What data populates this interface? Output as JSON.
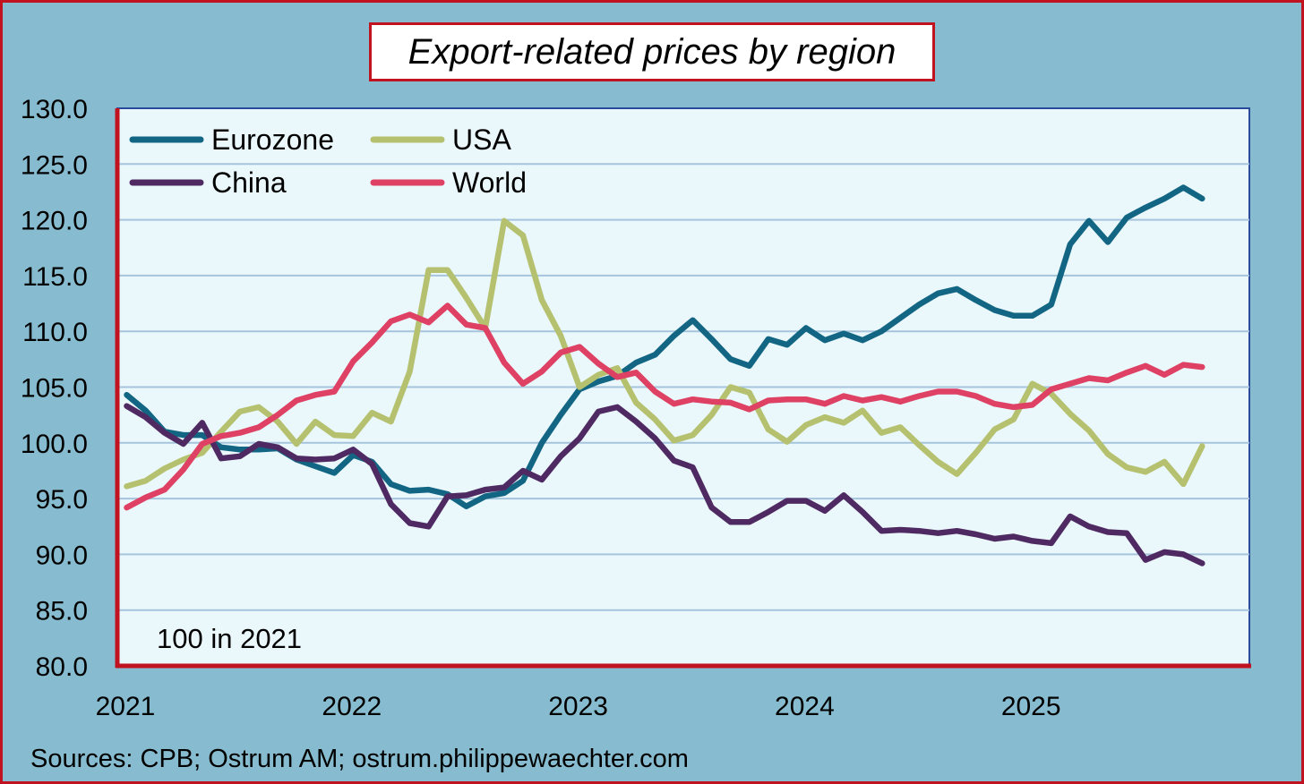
{
  "chart_data": {
    "type": "line",
    "title": "Export-related prices by region",
    "note": "100 in 2021",
    "source": "Sources: CPB; Ostrum AM; ostrum.philippewaechter.com",
    "ylim": [
      80,
      130
    ],
    "xlim": [
      2021,
      2026
    ],
    "yticks": [
      80,
      85,
      90,
      95,
      100,
      105,
      110,
      115,
      120,
      125,
      130
    ],
    "ytick_labels": [
      "80.0",
      "85.0",
      "90.0",
      "95.0",
      "100.0",
      "105.0",
      "110.0",
      "115.0",
      "120.0",
      "125.0",
      "130.0"
    ],
    "xticks": [
      2021,
      2022,
      2023,
      2024,
      2025
    ],
    "xtick_labels": [
      "2021",
      "2022",
      "2023",
      "2024",
      "2025"
    ],
    "grid": true,
    "legend_position": "top-left",
    "series": [
      {
        "name": "Eurozone",
        "color": "#136683",
        "values": [
          104.3,
          102.9,
          101.0,
          100.7,
          100.7,
          99.6,
          99.4,
          99.4,
          99.5,
          98.5,
          97.9,
          97.3,
          98.9,
          98.3,
          96.3,
          95.7,
          95.8,
          95.4,
          94.3,
          95.2,
          95.5,
          96.6,
          100.0,
          102.5,
          104.8,
          105.5,
          106.0,
          107.2,
          107.9,
          109.6,
          111.0,
          109.3,
          107.5,
          106.9,
          109.3,
          108.8,
          110.3,
          109.2,
          109.8,
          109.2,
          110.0,
          111.2,
          112.4,
          113.4,
          113.8,
          112.8,
          111.9,
          111.4,
          111.4,
          112.4,
          117.8,
          119.9,
          118.0,
          120.2,
          121.1,
          121.9,
          122.9,
          121.9
        ]
      },
      {
        "name": "USA",
        "color": "#b5c16f",
        "values": [
          96.1,
          96.6,
          97.7,
          98.5,
          99.1,
          101.0,
          102.8,
          103.2,
          101.9,
          99.9,
          101.9,
          100.7,
          100.6,
          102.7,
          101.9,
          106.4,
          115.5,
          115.5,
          113.0,
          110.3,
          119.9,
          118.6,
          112.8,
          109.6,
          105.0,
          106.1,
          106.7,
          103.6,
          102.1,
          100.2,
          100.7,
          102.5,
          105.0,
          104.5,
          101.2,
          100.1,
          101.6,
          102.3,
          101.8,
          102.9,
          100.9,
          101.4,
          99.8,
          98.3,
          97.2,
          99.1,
          101.2,
          102.1,
          105.3,
          104.4,
          102.6,
          101.1,
          99.0,
          97.8,
          97.4,
          98.3,
          96.3,
          99.7
        ]
      },
      {
        "name": "China",
        "color": "#4f2a62",
        "values": [
          103.3,
          102.3,
          100.9,
          99.9,
          101.8,
          98.6,
          98.8,
          99.9,
          99.6,
          98.6,
          98.5,
          98.6,
          99.4,
          98.1,
          94.5,
          92.8,
          92.5,
          95.2,
          95.3,
          95.8,
          96.0,
          97.5,
          96.7,
          98.8,
          100.4,
          102.8,
          103.2,
          101.9,
          100.4,
          98.4,
          97.8,
          94.2,
          92.9,
          92.9,
          93.8,
          94.8,
          94.8,
          93.9,
          95.3,
          93.8,
          92.1,
          92.2,
          92.1,
          91.9,
          92.1,
          91.8,
          91.4,
          91.6,
          91.2,
          91.0,
          93.4,
          92.5,
          92.0,
          91.9,
          89.5,
          90.2,
          90.0,
          89.2
        ]
      },
      {
        "name": "World",
        "color": "#de4163",
        "values": [
          94.2,
          95.1,
          95.8,
          97.6,
          99.9,
          100.6,
          100.9,
          101.4,
          102.5,
          103.8,
          104.3,
          104.6,
          107.3,
          109.0,
          110.9,
          111.5,
          110.8,
          112.3,
          110.6,
          110.3,
          107.2,
          105.3,
          106.4,
          108.1,
          108.6,
          107.1,
          105.9,
          106.3,
          104.6,
          103.5,
          103.9,
          103.7,
          103.6,
          103.0,
          103.8,
          103.9,
          103.9,
          103.5,
          104.2,
          103.8,
          104.1,
          103.7,
          104.2,
          104.6,
          104.6,
          104.2,
          103.5,
          103.2,
          103.4,
          104.8,
          105.3,
          105.8,
          105.6,
          106.3,
          106.9,
          106.1,
          107.0,
          106.8
        ]
      }
    ]
  }
}
